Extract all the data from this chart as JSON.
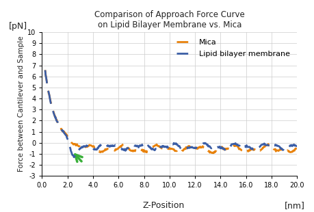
{
  "title_line1": "Comparison of Approach Force Curve",
  "title_line2": "on Lipid Bilayer Membrane vs. Mica",
  "xlabel": "Z-Position",
  "xlabel_unit": "[nm]",
  "ylabel": "Force between Cantilever and Sample",
  "ylabel_unit": "[pN]",
  "xlim": [
    0,
    20
  ],
  "ylim": [
    -3,
    10
  ],
  "xticks": [
    0.0,
    2.0,
    4.0,
    6.0,
    8.0,
    10.0,
    12.0,
    14.0,
    16.0,
    18.0,
    20.0
  ],
  "yticks": [
    -3,
    -2,
    -1,
    0,
    1,
    2,
    3,
    4,
    5,
    6,
    7,
    8,
    9,
    10
  ],
  "mica_color": "#E8820C",
  "lipid_color": "#3B5EA6",
  "arrow_color": "#3AB03A",
  "background_color": "#ffffff",
  "grid_color": "#cccccc"
}
